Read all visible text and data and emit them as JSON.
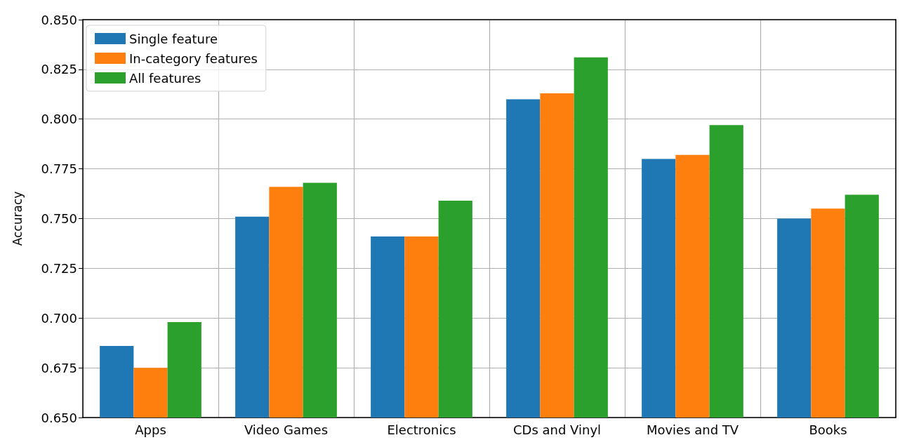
{
  "chart_data": {
    "type": "bar",
    "ylabel": "Accuracy",
    "categories": [
      "Apps",
      "Video Games",
      "Electronics",
      "CDs and Vinyl",
      "Movies and TV",
      "Books"
    ],
    "series": [
      {
        "name": "Single feature",
        "color": "#1f77b4",
        "values": [
          0.686,
          0.751,
          0.741,
          0.81,
          0.78,
          0.75
        ]
      },
      {
        "name": "In-category features",
        "color": "#ff7f0e",
        "values": [
          0.675,
          0.766,
          0.741,
          0.813,
          0.782,
          0.755
        ]
      },
      {
        "name": "All features",
        "color": "#2ca02c",
        "values": [
          0.698,
          0.768,
          0.759,
          0.831,
          0.797,
          0.762
        ]
      }
    ],
    "ylim": [
      0.65,
      0.85
    ],
    "yticks": [
      {
        "value": 0.65,
        "label": "0.650"
      },
      0.675,
      {
        "value": 0.7,
        "label": "0.700"
      },
      0.725,
      {
        "value": 0.75,
        "label": "0.750"
      },
      0.775,
      {
        "value": 0.8,
        "label": "0.800"
      },
      0.825,
      {
        "value": 0.85,
        "label": "0.850"
      }
    ],
    "grid": true,
    "legend": "top left"
  }
}
